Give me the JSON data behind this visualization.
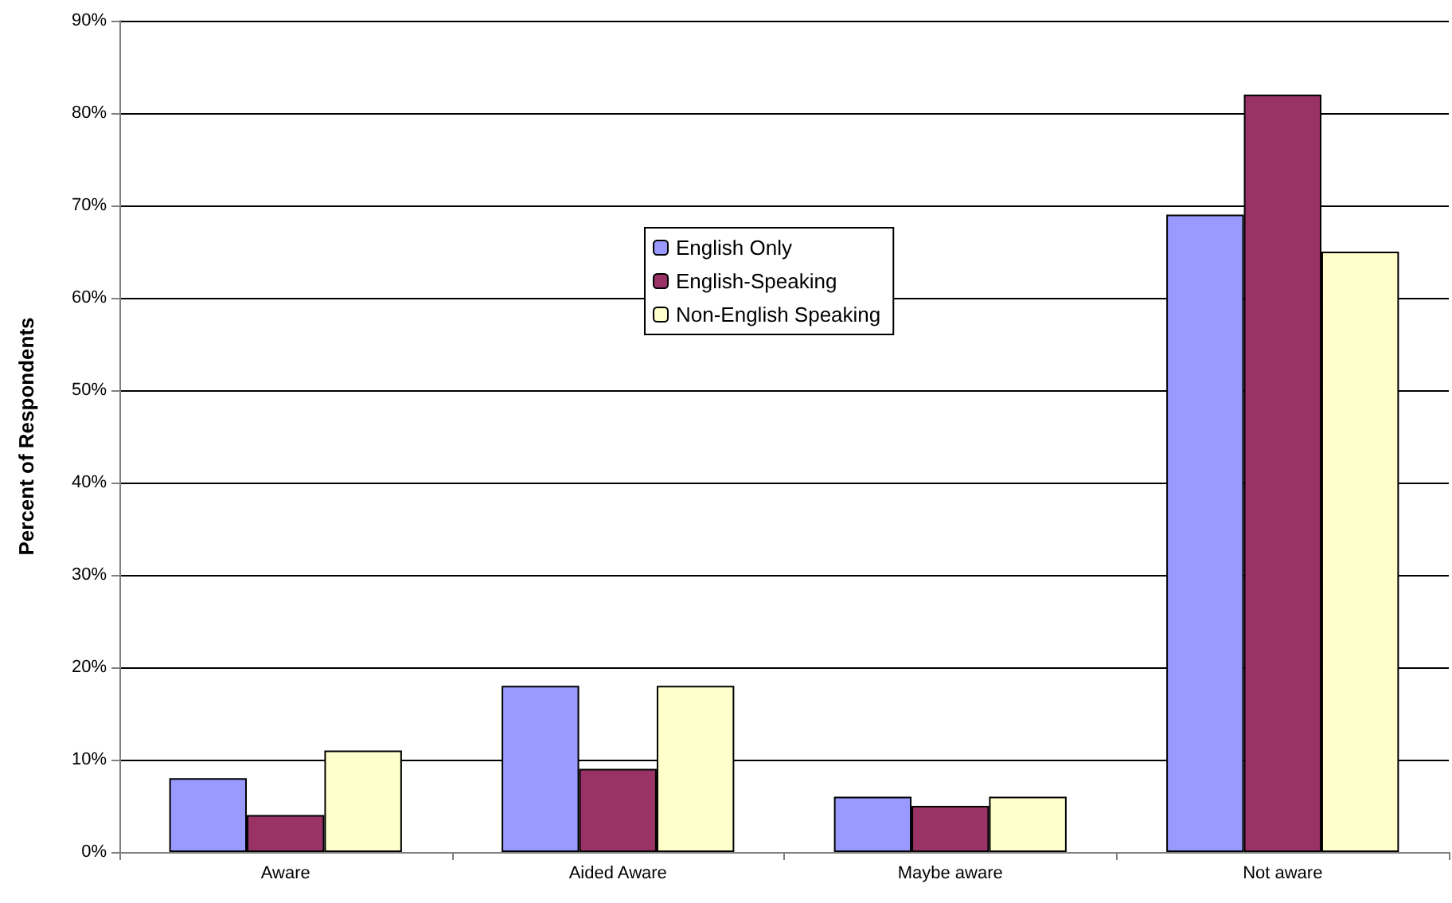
{
  "chart_data": {
    "type": "bar",
    "ylabel": "Percent of Respondents",
    "categories": [
      "Aware",
      "Aided Aware",
      "Maybe aware",
      "Not aware"
    ],
    "series": [
      {
        "name": "English Only",
        "color": "#9999ff",
        "values": [
          8,
          18,
          6,
          69
        ]
      },
      {
        "name": "English-Speaking",
        "color": "#993366",
        "values": [
          4,
          9,
          5,
          82
        ]
      },
      {
        "name": "Non-English Speaking",
        "color": "#ffffcc",
        "values": [
          11,
          18,
          6,
          65
        ]
      }
    ],
    "ylim": [
      0,
      90
    ],
    "yticks": [
      {
        "value": 0,
        "label": "0%"
      },
      {
        "value": 10,
        "label": "10%"
      },
      {
        "value": 20,
        "label": "20%"
      },
      {
        "value": 30,
        "label": "30%"
      },
      {
        "value": 40,
        "label": "40%"
      },
      {
        "value": 50,
        "label": "50%"
      },
      {
        "value": 60,
        "label": "60%"
      },
      {
        "value": 70,
        "label": "70%"
      },
      {
        "value": 80,
        "label": "80%"
      },
      {
        "value": 90,
        "label": "90%"
      }
    ],
    "grid": "y",
    "legend": "top center"
  }
}
